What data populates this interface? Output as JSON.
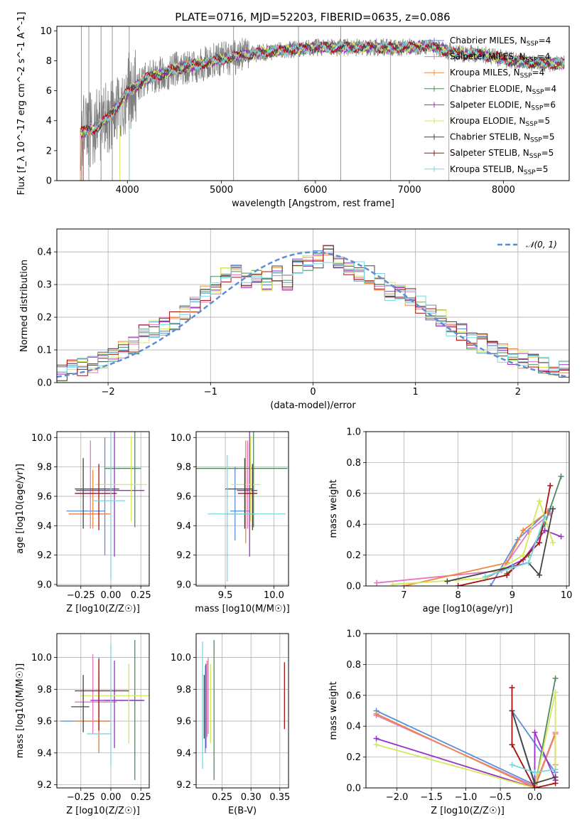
{
  "figure": {
    "title": "PLATE=0716, MJD=52203, FIBERID=0635, z=0.086"
  },
  "models": [
    {
      "name": "Chabrier MILES",
      "nssp": "4",
      "color": "#5b8fd6"
    },
    {
      "name": "Salpeter MILES",
      "nssp": "4",
      "color": "#e377c2"
    },
    {
      "name": "Kroupa MILES",
      "nssp": "4",
      "color": "#ee8844"
    },
    {
      "name": "Chabrier ELODIE",
      "nssp": "4",
      "color": "#4f8a5e"
    },
    {
      "name": "Salpeter ELODIE",
      "nssp": "6",
      "color": "#9b30c8"
    },
    {
      "name": "Kroupa ELODIE",
      "nssp": "5",
      "color": "#d4e85a"
    },
    {
      "name": "Chabrier STELIB",
      "nssp": "5",
      "color": "#444444"
    },
    {
      "name": "Salpeter STELIB",
      "nssp": "5",
      "color": "#aa1111"
    },
    {
      "name": "Kroupa STELIB",
      "nssp": "5",
      "color": "#77d7e0"
    }
  ],
  "chart_data": [
    {
      "id": "spectrum",
      "type": "line",
      "xlabel": "wavelength [Angstrom, rest frame]",
      "ylabel": "Flux [f_λ 10^-17 erg cm^-2 s^-1 A^-1]",
      "xlim": [
        3250,
        8700
      ],
      "ylim": [
        0,
        10.3
      ],
      "xticks": [
        4000,
        5000,
        6000,
        7000,
        8000
      ],
      "yticks": [
        0,
        2,
        4,
        6,
        8,
        10
      ],
      "data_color": "#808080",
      "continuum": {
        "x": [
          3500,
          3700,
          3900,
          4000,
          4200,
          4500,
          5000,
          5500,
          6000,
          6500,
          7000,
          7200,
          7500,
          7800,
          8100,
          8400,
          8650
        ],
        "y": [
          3.2,
          3.6,
          5.0,
          5.9,
          6.8,
          7.4,
          8.1,
          8.6,
          8.9,
          8.9,
          8.9,
          9.0,
          8.5,
          8.4,
          8.0,
          7.8,
          7.8
        ]
      },
      "legend": "right",
      "grid": false
    },
    {
      "id": "residuals",
      "type": "step",
      "xlabel": "(data-model)/error",
      "ylabel": "Normed distribution",
      "xlim": [
        -2.5,
        2.5
      ],
      "ylim": [
        0,
        0.47
      ],
      "xticks": [
        -2,
        -1,
        0,
        1,
        2
      ],
      "yticks": [
        0.0,
        0.1,
        0.2,
        0.3,
        0.4
      ],
      "gaussian": {
        "label": "𝒩(0, 1)",
        "color": "#5b8fd6",
        "mean": 0,
        "sigma": 1
      },
      "hist_template": [
        0.03,
        0.04,
        0.05,
        0.06,
        0.07,
        0.08,
        0.1,
        0.11,
        0.15,
        0.16,
        0.17,
        0.19,
        0.22,
        0.24,
        0.27,
        0.3,
        0.33,
        0.35,
        0.31,
        0.32,
        0.31,
        0.34,
        0.31,
        0.36,
        0.37,
        0.38,
        0.39,
        0.36,
        0.35,
        0.34,
        0.33,
        0.31,
        0.28,
        0.28,
        0.26,
        0.24,
        0.22,
        0.2,
        0.17,
        0.15,
        0.13,
        0.12,
        0.1,
        0.09,
        0.08,
        0.07,
        0.06,
        0.05,
        0.05,
        0.04
      ],
      "legend": "top-right",
      "grid": true
    },
    {
      "id": "age-vs-Z",
      "type": "errorbar",
      "xlabel": "Z [log10(Z/Z☉)]",
      "ylabel": "age  [log10(age/yr)]",
      "xlim": [
        -0.45,
        0.32
      ],
      "ylim": [
        8.99,
        10.04
      ],
      "xticks": [
        -0.25,
        0.0,
        0.25
      ],
      "yticks": [
        9.0,
        9.2,
        9.4,
        9.6,
        9.8,
        10.0
      ],
      "points": [
        {
          "x": -0.05,
          "y": 9.5,
          "xerr": [
            0.32,
            0.0
          ],
          "yerr": [
            0.3,
            0.5
          ],
          "model": 0
        },
        {
          "x": -0.17,
          "y": 9.48,
          "xerr": [
            0.18,
            0.17
          ],
          "yerr": [
            0.1,
            0.5
          ],
          "model": 1
        },
        {
          "x": -0.15,
          "y": 9.48,
          "xerr": [
            0.2,
            0.15
          ],
          "yerr": [
            0.1,
            0.3
          ],
          "model": 2
        },
        {
          "x": 0.2,
          "y": 9.79,
          "xerr": [
            0.25,
            0.05
          ],
          "yerr": [
            0.4,
            0.3
          ],
          "model": 3
        },
        {
          "x": 0.03,
          "y": 9.64,
          "xerr": [
            0.32,
            0.25
          ],
          "yerr": [
            0.45,
            0.4
          ],
          "model": 4
        },
        {
          "x": 0.17,
          "y": 9.68,
          "xerr": [
            0.3,
            0.13
          ],
          "yerr": [
            0.25,
            0.33
          ],
          "model": 5
        },
        {
          "x": -0.23,
          "y": 9.65,
          "xerr": [
            0.07,
            0.3
          ],
          "yerr": [
            0.27,
            0.21
          ],
          "model": 6
        },
        {
          "x": -0.1,
          "y": 9.62,
          "xerr": [
            0.2,
            0.15
          ],
          "yerr": [
            0.25,
            0.2
          ],
          "model": 7
        },
        {
          "x": 0.0,
          "y": 9.57,
          "xerr": [
            0.15,
            0.12
          ],
          "yerr": [
            0.53,
            0.48
          ],
          "model": 8
        }
      ],
      "grid": true
    },
    {
      "id": "age-vs-mass",
      "type": "errorbar",
      "xlabel": "mass [log10(M/M☉)]",
      "ylabel": "",
      "xlim": [
        9.2,
        10.15
      ],
      "ylim": [
        8.99,
        10.04
      ],
      "xticks": [
        9.5,
        10.0
      ],
      "yticks": [
        9.0,
        9.2,
        9.4,
        9.6,
        9.8,
        10.0
      ],
      "points": [
        {
          "x": 9.6,
          "y": 9.5,
          "xerr": [
            0.05,
            0.15
          ],
          "yerr": [
            0.2,
            0.3
          ],
          "model": 0
        },
        {
          "x": 9.73,
          "y": 9.48,
          "xerr": [
            0.13,
            0.1
          ],
          "yerr": [
            0.1,
            0.5
          ],
          "model": 1
        },
        {
          "x": 9.71,
          "y": 9.48,
          "xerr": [
            0.2,
            0.1
          ],
          "yerr": [
            0.2,
            0.5
          ],
          "model": 2
        },
        {
          "x": 9.79,
          "y": 9.79,
          "xerr": [
            0.6,
            0.35
          ],
          "yerr": [
            0.4,
            0.3
          ],
          "model": 3
        },
        {
          "x": 9.75,
          "y": 9.64,
          "xerr": [
            0.13,
            0.08
          ],
          "yerr": [
            0.45,
            0.4
          ],
          "model": 4
        },
        {
          "x": 9.76,
          "y": 9.68,
          "xerr": [
            0.2,
            0.1
          ],
          "yerr": [
            0.25,
            0.33
          ],
          "model": 5
        },
        {
          "x": 9.7,
          "y": 9.65,
          "xerr": [
            0.2,
            0.08
          ],
          "yerr": [
            0.27,
            0.21
          ],
          "model": 6
        },
        {
          "x": 9.78,
          "y": 9.62,
          "xerr": [
            0.15,
            0.05
          ],
          "yerr": [
            0.25,
            0.2
          ],
          "model": 7
        },
        {
          "x": 9.52,
          "y": 9.48,
          "xerr": [
            0.2,
            0.6
          ],
          "yerr": [
            0.46,
            0.4
          ],
          "model": 8
        }
      ],
      "grid": true
    },
    {
      "id": "massweight-vs-age",
      "type": "line",
      "xlabel": "age  [log10(age/yr)]",
      "ylabel": "mass weight",
      "xlim": [
        6.3,
        10.05
      ],
      "ylim": [
        0,
        1.0
      ],
      "xticks": [
        7,
        8,
        9,
        10
      ],
      "yticks": [
        0.0,
        0.2,
        0.4,
        0.6,
        0.8,
        1.0
      ],
      "series": [
        {
          "model": 0,
          "x": [
            8.6,
            9.1,
            9.7
          ],
          "y": [
            0.0,
            0.3,
            0.5
          ]
        },
        {
          "model": 1,
          "x": [
            6.5,
            8.8,
            9.3,
            9.7
          ],
          "y": [
            0.02,
            0.1,
            0.35,
            0.47
          ]
        },
        {
          "model": 2,
          "x": [
            7.0,
            8.9,
            9.2,
            9.65
          ],
          "y": [
            0.0,
            0.15,
            0.36,
            0.48
          ]
        },
        {
          "model": 3,
          "x": [
            8.9,
            9.3,
            9.6,
            9.9
          ],
          "y": [
            0.08,
            0.2,
            0.4,
            0.71
          ]
        },
        {
          "model": 4,
          "x": [
            8.5,
            9.2,
            9.6,
            9.9
          ],
          "y": [
            0.05,
            0.17,
            0.36,
            0.32
          ]
        },
        {
          "model": 5,
          "x": [
            6.8,
            8.5,
            9.2,
            9.5,
            9.75
          ],
          "y": [
            0.01,
            0.05,
            0.2,
            0.55,
            0.28
          ]
        },
        {
          "model": 6,
          "x": [
            7.8,
            9.3,
            9.5,
            9.75
          ],
          "y": [
            0.03,
            0.15,
            0.07,
            0.5
          ]
        },
        {
          "model": 7,
          "x": [
            8.0,
            8.9,
            9.5,
            9.7
          ],
          "y": [
            0.0,
            0.07,
            0.28,
            0.65
          ]
        },
        {
          "model": 8,
          "x": [
            8.5,
            9.0,
            9.3,
            9.6
          ],
          "y": [
            0.06,
            0.12,
            0.15,
            0.45
          ]
        }
      ],
      "grid": true
    },
    {
      "id": "mass-vs-Z",
      "type": "errorbar",
      "xlabel": "Z [log10(Z/Z☉)]",
      "ylabel": "mass [log10(M/M☉)]",
      "xlim": [
        -0.45,
        0.32
      ],
      "ylim": [
        9.18,
        10.15
      ],
      "xticks": [
        -0.25,
        0.0,
        0.25
      ],
      "yticks": [
        9.2,
        9.4,
        9.6,
        9.8,
        10.0
      ],
      "points": [
        {
          "x": -0.1,
          "y": 9.6,
          "xerr": [
            0.32,
            0.1
          ],
          "yerr": [
            0.2,
            0.4
          ],
          "model": 0
        },
        {
          "x": -0.15,
          "y": 9.72,
          "xerr": [
            0.15,
            0.2
          ],
          "yerr": [
            0.2,
            0.3
          ],
          "model": 1
        },
        {
          "x": -0.1,
          "y": 9.6,
          "xerr": [
            0.2,
            0.1
          ],
          "yerr": [
            0.2,
            0.3
          ],
          "model": 2
        },
        {
          "x": 0.2,
          "y": 9.73,
          "xerr": [
            0.25,
            0.07
          ],
          "yerr": [
            0.5,
            0.38
          ],
          "model": 3
        },
        {
          "x": 0.03,
          "y": 9.73,
          "xerr": [
            0.2,
            0.25
          ],
          "yerr": [
            0.3,
            0.25
          ],
          "model": 4
        },
        {
          "x": 0.15,
          "y": 9.76,
          "xerr": [
            0.4,
            0.17
          ],
          "yerr": [
            0.3,
            0.2
          ],
          "model": 5
        },
        {
          "x": -0.23,
          "y": 9.69,
          "xerr": [
            0.1,
            0.05
          ],
          "yerr": [
            0.16,
            0.2
          ],
          "model": 6
        },
        {
          "x": -0.1,
          "y": 9.79,
          "xerr": [
            0.2,
            0.25
          ],
          "yerr": [
            0.25,
            0.2
          ],
          "model": 7
        },
        {
          "x": 0.0,
          "y": 9.52,
          "xerr": [
            0.2,
            0.0
          ],
          "yerr": [
            0.2,
            0.56
          ],
          "model": 8
        }
      ],
      "grid": true
    },
    {
      "id": "mass-vs-ebv",
      "type": "errorbar",
      "xlabel": "E(B-V)",
      "ylabel": "",
      "xlim": [
        0.205,
        0.365
      ],
      "ylim": [
        9.18,
        10.15
      ],
      "xticks": [
        0.25,
        0.3,
        0.35
      ],
      "yticks": [
        9.2,
        9.4,
        9.6,
        9.8,
        10.0
      ],
      "points": [
        {
          "x": 0.221,
          "y": 9.65,
          "xerr": [
            0,
            0
          ],
          "yerr": [
            0.25,
            0.3
          ],
          "model": 0
        },
        {
          "x": 0.226,
          "y": 9.72,
          "xerr": [
            0,
            0
          ],
          "yerr": [
            0.2,
            0.28
          ],
          "model": 1
        },
        {
          "x": 0.224,
          "y": 9.7,
          "xerr": [
            0,
            0
          ],
          "yerr": [
            0.2,
            0.28
          ],
          "model": 2
        },
        {
          "x": 0.236,
          "y": 9.73,
          "xerr": [
            0,
            0
          ],
          "yerr": [
            0.5,
            0.38
          ],
          "model": 3
        },
        {
          "x": 0.222,
          "y": 9.73,
          "xerr": [
            0,
            0
          ],
          "yerr": [
            0.3,
            0.23
          ],
          "model": 4
        },
        {
          "x": 0.23,
          "y": 9.76,
          "xerr": [
            0,
            0
          ],
          "yerr": [
            0.3,
            0.2
          ],
          "model": 5
        },
        {
          "x": 0.219,
          "y": 9.69,
          "xerr": [
            0,
            0
          ],
          "yerr": [
            0.2,
            0.2
          ],
          "model": 6
        },
        {
          "x": 0.358,
          "y": 9.75,
          "xerr": [
            0,
            0
          ],
          "yerr": [
            0.2,
            0.22
          ],
          "model": 7
        },
        {
          "x": 0.216,
          "y": 9.7,
          "xerr": [
            0,
            0
          ],
          "yerr": [
            0.4,
            0.4
          ],
          "model": 8
        }
      ],
      "grid": true
    },
    {
      "id": "massweight-vs-Z",
      "type": "line",
      "xlabel": "Z [log10(Z/Z☉)]",
      "ylabel": "mass weight",
      "xlim": [
        -2.45,
        0.5
      ],
      "ylim": [
        0,
        1.0
      ],
      "xticks": [
        -2.0,
        -1.5,
        -1.0,
        -0.5,
        0.0
      ],
      "yticks": [
        0.0,
        0.2,
        0.4,
        0.6,
        0.8,
        1.0
      ],
      "series": [
        {
          "model": 0,
          "x": [
            -2.3,
            0.0,
            -0.33,
            0.3
          ],
          "y": [
            0.5,
            0.02,
            0.5,
            0.1
          ]
        },
        {
          "model": 1,
          "x": [
            -2.3,
            0.0,
            0.3,
            0.3
          ],
          "y": [
            0.47,
            0.01,
            0.36,
            0.05
          ]
        },
        {
          "model": 2,
          "x": [
            -2.3,
            0.0,
            0.3,
            0.3
          ],
          "y": [
            0.48,
            0.0,
            0.35,
            0.15
          ]
        },
        {
          "model": 3,
          "x": [
            -0.33,
            0.0,
            0.3
          ],
          "y": [
            0.28,
            0.0,
            0.71
          ]
        },
        {
          "model": 4,
          "x": [
            -2.3,
            0.0,
            0.0,
            0.3
          ],
          "y": [
            0.32,
            0.0,
            0.36,
            0.05
          ]
        },
        {
          "model": 5,
          "x": [
            -2.3,
            0.0,
            0.3,
            0.3
          ],
          "y": [
            0.28,
            0.0,
            0.62,
            0.12
          ]
        },
        {
          "model": 6,
          "x": [
            -0.33,
            0.0,
            0.3
          ],
          "y": [
            0.5,
            0.03,
            0.07
          ]
        },
        {
          "model": 7,
          "x": [
            -0.33,
            -0.33,
            0.0,
            0.3
          ],
          "y": [
            0.65,
            0.28,
            0.0,
            0.03
          ]
        },
        {
          "model": 8,
          "x": [
            -0.33,
            0.0,
            0.3
          ],
          "y": [
            0.15,
            0.1,
            0.12
          ]
        }
      ],
      "grid": true
    }
  ]
}
